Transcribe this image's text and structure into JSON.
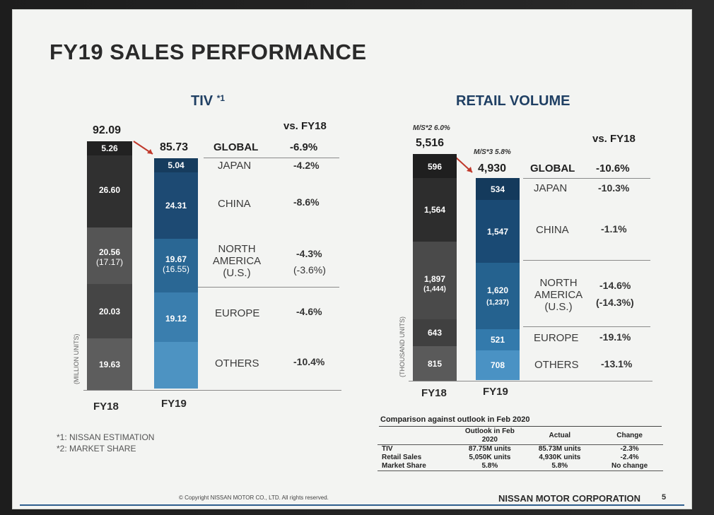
{
  "title": "FY19 SALES PERFORMANCE",
  "tiv": {
    "heading": "TIV",
    "heading_note": "*1",
    "vs_label": "vs. FY18",
    "fy18_total": "92.09",
    "fy19_total": "85.73",
    "axis_label": "(MILLION UNITS)",
    "x_fy18": "FY18",
    "x_fy19": "FY19",
    "rows": [
      {
        "label": "GLOBAL",
        "fy18": "",
        "fy19": "",
        "change": "-6.9%"
      },
      {
        "label": "JAPAN",
        "fy18": "5.26",
        "fy19": "5.04",
        "change": "-4.2%"
      },
      {
        "label": "CHINA",
        "fy18": "26.60",
        "fy19": "24.31",
        "change": "-8.6%"
      },
      {
        "label": "NORTH AMERICA (U.S.)",
        "fy18": "20.56",
        "fy18_sub": "(17.17)",
        "fy19": "19.67",
        "fy19_sub": "(16.55)",
        "change": "-4.3%",
        "change_sub": "(-3.6%)"
      },
      {
        "label": "EUROPE",
        "fy18": "20.03",
        "fy19": "19.12",
        "change": "-4.6%"
      },
      {
        "label": "OTHERS",
        "fy18": "19.63",
        "fy19": "",
        "change": "-10.4%"
      }
    ]
  },
  "retail": {
    "heading": "RETAIL VOLUME",
    "vs_label": "vs. FY18",
    "ms_fy18": "M/S*2 6.0%",
    "ms_fy19": "M/S*3 5.8%",
    "fy18_total": "5,516",
    "fy19_total": "4,930",
    "axis_label": "(THOUSAND UNITS)",
    "x_fy18": "FY18",
    "x_fy19": "FY19",
    "global_label": "GLOBAL",
    "global_change": "-10.6%",
    "rows": [
      {
        "label": "JAPAN",
        "fy18": "596",
        "fy19": "534",
        "change": "-10.3%"
      },
      {
        "label": "CHINA",
        "fy18": "1,564",
        "fy19": "1,547",
        "change": "-1.1%"
      },
      {
        "label": "NORTH AMERICA (U.S.)",
        "fy18": "1,897",
        "fy18_sub": "(1,444)",
        "fy19": "1,620",
        "fy19_sub": "(1,237)",
        "change": "-14.6%",
        "change_sub": "(-14.3%)"
      },
      {
        "label": "EUROPE",
        "fy18": "643",
        "fy19": "521",
        "change": "-19.1%"
      },
      {
        "label": "OTHERS",
        "fy18": "815",
        "fy19": "708",
        "change": "-13.1%"
      }
    ]
  },
  "notes": {
    "n1": "*1: NISSAN ESTIMATION",
    "n2": "*2: MARKET SHARE"
  },
  "comparison": {
    "title": "Comparison against outlook in Feb 2020",
    "col_outlook": "Outlook in Feb 2020",
    "col_actual": "Actual",
    "col_change": "Change",
    "rows": [
      {
        "name": "TIV",
        "outlook": "87.75M units",
        "actual": "85.73M units",
        "change": "-2.3%"
      },
      {
        "name": "Retail Sales",
        "outlook": "5,050K units",
        "actual": "4,930K units",
        "change": "-2.4%"
      },
      {
        "name": "Market Share",
        "outlook": "5.8%",
        "actual": "5.8%",
        "change": "No change"
      }
    ]
  },
  "footer": {
    "copyright": "© Copyright NISSAN MOTOR CO., LTD. All rights reserved.",
    "company": "NISSAN MOTOR CORPORATION",
    "page": "5"
  },
  "colors": {
    "fy18_dark": "#2f2f2f",
    "fy19_blue": "#1f5f8e",
    "accent_navy": "#1f3f63"
  }
}
